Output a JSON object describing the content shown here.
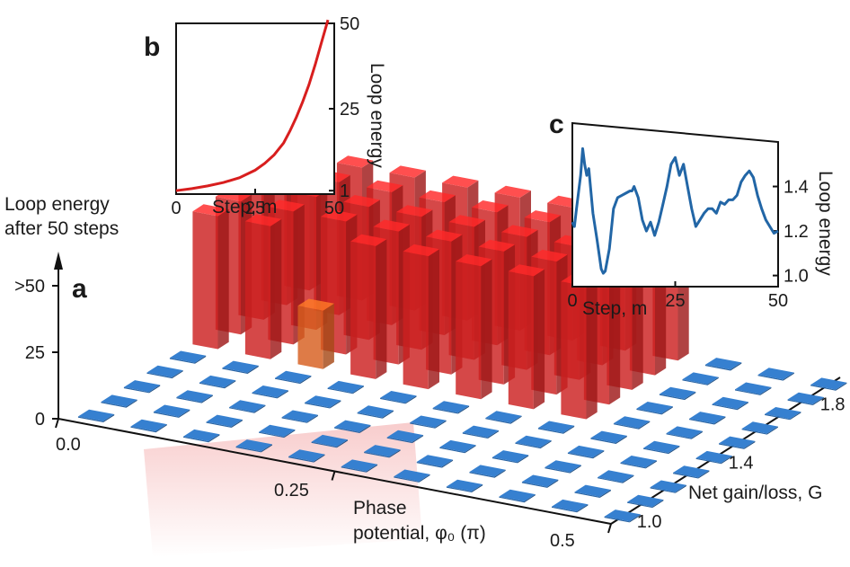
{
  "chart_data": [
    {
      "panel": "a",
      "type": "bar3d",
      "zlabel_lines": [
        "Loop energy",
        "after 50 steps"
      ],
      "ztick_labels": [
        "0",
        "25",
        ">50"
      ],
      "zticks": [
        0,
        25,
        50
      ],
      "xlabel_lines": [
        "Phase",
        "potential, φ₀ (π)"
      ],
      "xtick_labels": [
        "0.0",
        "0.25",
        "0.5"
      ],
      "ylabel": "Net gain/loss, G",
      "ytick_labels": [
        "1.0",
        "1.4",
        "1.8"
      ],
      "phase_values": [
        0.0,
        0.05,
        0.1,
        0.15,
        0.2,
        0.25,
        0.3,
        0.35,
        0.4,
        0.45,
        0.5
      ],
      "gain_values": [
        1.0,
        1.1,
        1.2,
        1.3,
        1.4,
        1.5,
        1.6,
        1.7,
        1.8,
        1.9
      ],
      "grid_note": "rows index gain (1.0..1.9), columns index phase (0.0..0.5); values capped at >50",
      "values": [
        [
          1,
          1,
          1,
          1,
          1,
          1,
          1,
          1,
          1,
          1,
          1
        ],
        [
          1,
          1,
          1,
          1,
          1,
          1,
          1,
          1,
          1,
          1,
          1
        ],
        [
          1,
          1,
          1,
          1,
          1,
          1,
          1,
          1,
          1,
          1,
          1
        ],
        [
          1,
          1,
          1,
          1,
          1,
          1,
          1,
          1,
          1,
          1,
          1
        ],
        [
          1,
          1,
          1,
          1,
          1,
          1,
          1,
          1,
          1,
          1,
          1
        ],
        [
          50,
          50,
          22,
          50,
          50,
          50,
          50,
          50,
          1,
          1,
          1
        ],
        [
          50,
          50,
          50,
          50,
          50,
          50,
          50,
          50,
          1,
          1,
          1
        ],
        [
          50,
          50,
          50,
          50,
          50,
          50,
          50,
          50,
          1,
          1,
          1
        ],
        [
          50,
          50,
          50,
          50,
          50,
          50,
          50,
          50,
          1,
          1,
          1
        ],
        [
          50,
          50,
          50,
          50,
          50,
          50,
          50,
          50,
          1,
          1,
          1
        ]
      ],
      "colors": {
        "high": "#e32424",
        "mid": "#ef6a22",
        "low": "#2f6fb5"
      }
    },
    {
      "panel": "b",
      "type": "line",
      "xlabel": "Step, m",
      "ylabel": "Loop energy",
      "xlim": [
        0,
        50
      ],
      "ylim": [
        0,
        50
      ],
      "xtick_labels": [
        "0",
        "25",
        "50"
      ],
      "xticks": [
        0,
        25,
        50
      ],
      "ytick_labels": [
        "1",
        "25",
        "50"
      ],
      "yticks": [
        1,
        25,
        50
      ],
      "series": [
        {
          "color": "#d81e1e",
          "x": [
            0,
            5,
            10,
            15,
            20,
            25,
            28,
            31,
            34,
            36,
            38,
            40,
            42,
            44,
            46,
            48
          ],
          "y": [
            1,
            1.6,
            2.4,
            3.4,
            4.8,
            7,
            9,
            11.5,
            15,
            18.5,
            22.5,
            27,
            32,
            38,
            44.5,
            51
          ]
        }
      ]
    },
    {
      "panel": "c",
      "type": "line",
      "xlabel": "Step, m",
      "ylabel": "Loop energy",
      "xlim": [
        0,
        50
      ],
      "ylim": [
        0.95,
        1.6
      ],
      "xtick_labels": [
        "0",
        "25",
        "50"
      ],
      "xticks": [
        0,
        25,
        50
      ],
      "ytick_labels": [
        "1.0",
        "1.2",
        "1.4"
      ],
      "yticks": [
        1.0,
        1.2,
        1.4
      ],
      "series": [
        {
          "color": "#2266a6",
          "x": [
            0,
            0.5,
            1,
            2,
            2.5,
            3,
            3.5,
            4,
            4.5,
            5,
            6,
            7,
            7.5,
            8,
            9,
            10,
            11,
            12,
            13,
            14,
            14.5,
            15,
            16,
            17,
            18,
            19,
            20,
            21,
            22,
            23,
            24,
            25,
            26,
            27,
            28,
            29,
            30,
            31,
            32,
            33,
            34,
            35,
            36,
            37,
            38,
            39,
            40,
            41,
            42,
            43,
            44,
            45,
            46,
            47,
            48,
            49,
            50
          ],
          "y": [
            1.24,
            1.22,
            1.3,
            1.45,
            1.57,
            1.5,
            1.45,
            1.48,
            1.38,
            1.28,
            1.16,
            1.03,
            1.01,
            1.02,
            1.12,
            1.3,
            1.35,
            1.36,
            1.37,
            1.38,
            1.38,
            1.4,
            1.35,
            1.25,
            1.2,
            1.24,
            1.18,
            1.24,
            1.32,
            1.4,
            1.5,
            1.53,
            1.45,
            1.5,
            1.4,
            1.3,
            1.22,
            1.25,
            1.28,
            1.3,
            1.3,
            1.28,
            1.33,
            1.32,
            1.34,
            1.34,
            1.36,
            1.42,
            1.45,
            1.47,
            1.44,
            1.36,
            1.3,
            1.25,
            1.22,
            1.19,
            1.2
          ]
        }
      ]
    }
  ]
}
